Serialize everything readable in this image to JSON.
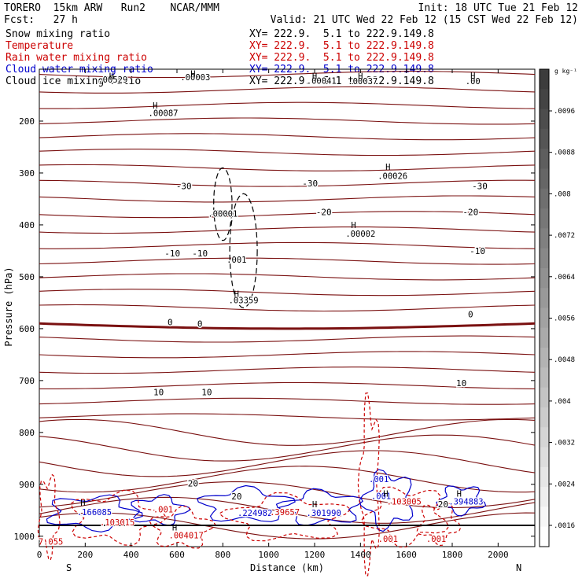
{
  "header": {
    "model": "TORERO  15km ARW   Run2    NCAR/MMM",
    "init": "Init: 18 UTC Tue 21 Feb 12",
    "fcst": "Fcst:   27 h",
    "valid": "Valid: 21 UTC Wed 22 Feb 12 (15 CST Wed 22 Feb 12)"
  },
  "fields": [
    {
      "name": "Snow mixing ratio",
      "xy": "XY= 222.9.  5.1 to 222.9.149.8",
      "color": "#000000"
    },
    {
      "name": "Temperature",
      "xy": "XY= 222.9.  5.1 to 222.9.149.8",
      "color": "#cc0000"
    },
    {
      "name": "Rain water mixing ratio",
      "xy": "XY= 222.9.  5.1 to 222.9.149.8",
      "color": "#cc0000"
    },
    {
      "name": "Cloud water mixing ratio",
      "xy": "XY= 222.9.  5.1 to 222.9.149.8",
      "color": "#0000cc"
    },
    {
      "name": "Cloud ice mixing ratio",
      "xy": "XY= 222.9.  5.1 to 222.9.149.8",
      "color": "#000000"
    }
  ],
  "chart_data": {
    "type": "contour",
    "title": "",
    "xlabel": "Distance (km)",
    "ylabel": "Pressure (hPa)",
    "xlim": [
      0,
      2160
    ],
    "ylim": [
      1020,
      100
    ],
    "x_ticks": [
      0,
      200,
      400,
      600,
      800,
      1000,
      1200,
      1400,
      1600,
      1800,
      2000
    ],
    "y_ticks": [
      200,
      300,
      400,
      500,
      600,
      700,
      800,
      900,
      1000
    ],
    "x_end_labels": {
      "left": "S",
      "right": "N"
    },
    "colorbar": {
      "unit": "g kg⁻¹",
      "ticks": [
        ".0096",
        ".0088",
        ".008",
        ".0072",
        ".0064",
        ".0056",
        ".0048",
        ".004",
        ".0032",
        ".0024",
        ".0016"
      ]
    },
    "temperature_labels": [
      {
        "x": 630,
        "p": 325,
        "text": "-30"
      },
      {
        "x": 1180,
        "p": 320,
        "text": "-30"
      },
      {
        "x": 1920,
        "p": 325,
        "text": "-30"
      },
      {
        "x": 780,
        "p": 378,
        "text": "-20"
      },
      {
        "x": 1240,
        "p": 375,
        "text": "-20"
      },
      {
        "x": 1880,
        "p": 375,
        "text": "-20"
      },
      {
        "x": 580,
        "p": 455,
        "text": "-10"
      },
      {
        "x": 700,
        "p": 455,
        "text": "-10"
      },
      {
        "x": 1910,
        "p": 450,
        "text": "-10"
      },
      {
        "x": 570,
        "p": 587,
        "text": "0"
      },
      {
        "x": 700,
        "p": 590,
        "text": "0"
      },
      {
        "x": 1880,
        "p": 572,
        "text": "0"
      },
      {
        "x": 520,
        "p": 722,
        "text": "10"
      },
      {
        "x": 730,
        "p": 722,
        "text": "10"
      },
      {
        "x": 1840,
        "p": 705,
        "text": "10"
      },
      {
        "x": 670,
        "p": 898,
        "text": "20"
      },
      {
        "x": 860,
        "p": 923,
        "text": "20"
      },
      {
        "x": 1760,
        "p": 938,
        "text": "20"
      }
    ],
    "extrema": [
      {
        "x": 320,
        "p": 120,
        "text": ".00529",
        "color": "#000000"
      },
      {
        "x": 680,
        "p": 115,
        "text": ".00003",
        "color": "#000000"
      },
      {
        "x": 1230,
        "p": 122,
        "text": ".00041",
        "color": "#000000"
      },
      {
        "x": 1410,
        "p": 123,
        "text": ".00037",
        "color": "#000000"
      },
      {
        "x": 1890,
        "p": 123,
        "text": ".00",
        "color": "#000000"
      },
      {
        "x": 540,
        "p": 184,
        "text": ".00087",
        "color": "#000000"
      },
      {
        "x": 1540,
        "p": 305,
        "text": ".00026",
        "color": "#000000"
      },
      {
        "x": 1400,
        "p": 417,
        "text": ".00002",
        "color": "#000000"
      },
      {
        "x": 800,
        "p": 378,
        "text": ".00001",
        "color": "#000000"
      },
      {
        "x": 860,
        "p": 467,
        "text": ".001",
        "color": "#000000"
      },
      {
        "x": 890,
        "p": 545,
        "text": ".03359",
        "color": "#000000"
      },
      {
        "x": 240,
        "p": 953,
        "text": ".166085",
        "color": "#0000cc"
      },
      {
        "x": 340,
        "p": 973,
        "text": ".103015",
        "color": "#cc0000"
      },
      {
        "x": 540,
        "p": 948,
        "text": ".001",
        "color": "#cc0000"
      },
      {
        "x": 640,
        "p": 998,
        "text": ".004017",
        "color": "#cc0000"
      },
      {
        "x": 50,
        "p": 1010,
        "text": "7.055",
        "color": "#cc0000"
      },
      {
        "x": 940,
        "p": 955,
        "text": ".224982",
        "color": "#0000cc"
      },
      {
        "x": 1070,
        "p": 953,
        "text": ".39657",
        "color": "#cc0000"
      },
      {
        "x": 1240,
        "p": 955,
        "text": ".301990",
        "color": "#0000cc"
      },
      {
        "x": 1480,
        "p": 890,
        "text": ".001",
        "color": "#0000cc"
      },
      {
        "x": 1490,
        "p": 922,
        "text": ".001",
        "color": "#0000cc"
      },
      {
        "x": 1590,
        "p": 933,
        "text": ".103005",
        "color": "#cc0000"
      },
      {
        "x": 1860,
        "p": 933,
        "text": ".394883",
        "color": "#0000cc"
      },
      {
        "x": 1520,
        "p": 1005,
        "text": ".001",
        "color": "#cc0000"
      },
      {
        "x": 1730,
        "p": 1005,
        "text": ".001",
        "color": "#cc0000"
      }
    ],
    "highs": [
      {
        "x": 315,
        "p": 113
      },
      {
        "x": 670,
        "p": 108
      },
      {
        "x": 1200,
        "p": 113
      },
      {
        "x": 1400,
        "p": 113
      },
      {
        "x": 1890,
        "p": 112
      },
      {
        "x": 505,
        "p": 170
      },
      {
        "x": 1520,
        "p": 288
      },
      {
        "x": 1370,
        "p": 400
      },
      {
        "x": 860,
        "p": 533
      },
      {
        "x": 190,
        "p": 935
      },
      {
        "x": 590,
        "p": 983
      },
      {
        "x": 1200,
        "p": 938
      },
      {
        "x": 1510,
        "p": 918
      },
      {
        "x": 1830,
        "p": 918
      }
    ]
  }
}
